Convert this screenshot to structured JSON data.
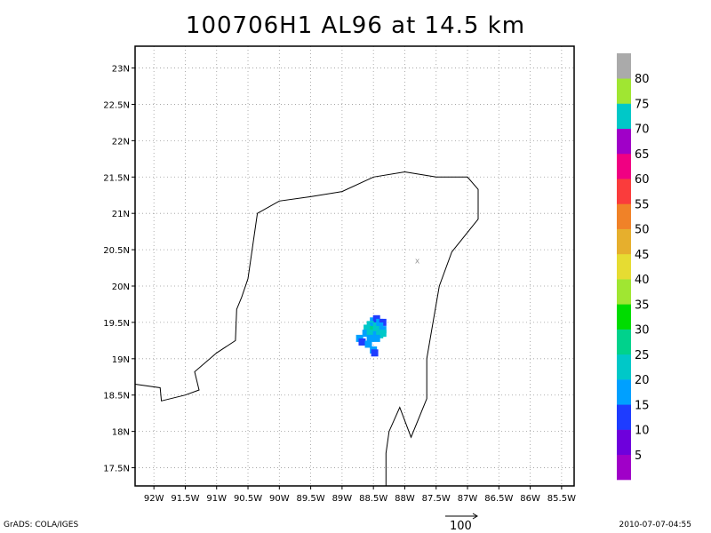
{
  "title": "100706H1 AL96 at 14.5 km",
  "footer": {
    "credit": "GrADS: COLA/IGES",
    "timestamp": "2010-07-07-04:55",
    "vector_scale_label": "100"
  },
  "map": {
    "lon_range": [
      -92.3,
      -85.3
    ],
    "lat_range": [
      17.25,
      23.3
    ],
    "lon_ticks": [
      -92,
      -91.5,
      -91,
      -90.5,
      -90,
      -89.5,
      -89,
      -88.5,
      -88,
      -87.5,
      -87,
      -86.5,
      -86,
      -85.5
    ],
    "lon_labels": [
      "92W",
      "91.5W",
      "91W",
      "90.5W",
      "90W",
      "89.5W",
      "89W",
      "88.5W",
      "88W",
      "87.5W",
      "87W",
      "86.5W",
      "86W",
      "85.5W"
    ],
    "lat_ticks": [
      17.5,
      18,
      18.5,
      19,
      19.5,
      20,
      20.5,
      21,
      21.5,
      22,
      22.5,
      23
    ],
    "lat_labels": [
      "17.5N",
      "18N",
      "18.5N",
      "19N",
      "19.5N",
      "20N",
      "20.5N",
      "21N",
      "21.5N",
      "22N",
      "22.5N",
      "23N"
    ],
    "grid": "dotted",
    "coastline": [
      [
        -92.3,
        18.65
      ],
      [
        -91.9,
        18.6
      ],
      [
        -91.88,
        18.42
      ],
      [
        -91.5,
        18.5
      ],
      [
        -91.28,
        18.57
      ],
      [
        -91.35,
        18.82
      ],
      [
        -91.0,
        19.08
      ],
      [
        -90.7,
        19.25
      ],
      [
        -90.68,
        19.68
      ],
      [
        -90.6,
        19.85
      ],
      [
        -90.5,
        20.1
      ],
      [
        -90.35,
        21.0
      ],
      [
        -90.0,
        21.17
      ],
      [
        -89.5,
        21.23
      ],
      [
        -89.0,
        21.3
      ],
      [
        -88.5,
        21.5
      ],
      [
        -88.0,
        21.57
      ],
      [
        -87.5,
        21.5
      ],
      [
        -87.0,
        21.5
      ],
      [
        -86.83,
        21.33
      ],
      [
        -86.83,
        20.92
      ],
      [
        -87.25,
        20.47
      ],
      [
        -87.45,
        20.0
      ],
      [
        -87.55,
        19.5
      ],
      [
        -87.65,
        19.0
      ],
      [
        -87.65,
        18.45
      ],
      [
        -87.9,
        17.92
      ],
      [
        -88.08,
        18.33
      ],
      [
        -88.25,
        18.0
      ],
      [
        -88.3,
        17.7
      ],
      [
        -88.3,
        17.25
      ]
    ],
    "center_marker": {
      "lon": -87.8,
      "lat": 20.35,
      "symbol": "x",
      "color": "#999999"
    }
  },
  "reflectivity": [
    {
      "lon": -88.5,
      "lat": 19.52,
      "dbz": 15
    },
    {
      "lon": -88.45,
      "lat": 19.55,
      "dbz": 10
    },
    {
      "lon": -88.4,
      "lat": 19.5,
      "dbz": 15
    },
    {
      "lon": -88.35,
      "lat": 19.5,
      "dbz": 10
    },
    {
      "lon": -88.55,
      "lat": 19.47,
      "dbz": 20
    },
    {
      "lon": -88.5,
      "lat": 19.45,
      "dbz": 15
    },
    {
      "lon": -88.45,
      "lat": 19.45,
      "dbz": 20
    },
    {
      "lon": -88.4,
      "lat": 19.45,
      "dbz": 15
    },
    {
      "lon": -88.6,
      "lat": 19.42,
      "dbz": 20
    },
    {
      "lon": -88.55,
      "lat": 19.4,
      "dbz": 20
    },
    {
      "lon": -88.5,
      "lat": 19.4,
      "dbz": 25
    },
    {
      "lon": -88.45,
      "lat": 19.4,
      "dbz": 20
    },
    {
      "lon": -88.4,
      "lat": 19.4,
      "dbz": 20
    },
    {
      "lon": -88.35,
      "lat": 19.4,
      "dbz": 15
    },
    {
      "lon": -88.62,
      "lat": 19.35,
      "dbz": 15
    },
    {
      "lon": -88.55,
      "lat": 19.35,
      "dbz": 20
    },
    {
      "lon": -88.5,
      "lat": 19.33,
      "dbz": 20
    },
    {
      "lon": -88.45,
      "lat": 19.33,
      "dbz": 15
    },
    {
      "lon": -88.4,
      "lat": 19.33,
      "dbz": 20
    },
    {
      "lon": -88.35,
      "lat": 19.35,
      "dbz": 20
    },
    {
      "lon": -88.55,
      "lat": 19.28,
      "dbz": 15
    },
    {
      "lon": -88.45,
      "lat": 19.28,
      "dbz": 15
    },
    {
      "lon": -88.72,
      "lat": 19.28,
      "dbz": 15
    },
    {
      "lon": -88.68,
      "lat": 19.23,
      "dbz": 10
    },
    {
      "lon": -88.58,
      "lat": 19.2,
      "dbz": 15
    },
    {
      "lon": -88.5,
      "lat": 19.12,
      "dbz": 15
    },
    {
      "lon": -88.48,
      "lat": 19.08,
      "dbz": 10
    }
  ],
  "colorbar": {
    "colors": [
      "#a000c8",
      "#6e00dc",
      "#1e3cff",
      "#00a0ff",
      "#00c8c8",
      "#00d28c",
      "#00dc00",
      "#a0e632",
      "#e6dc32",
      "#e6af2d",
      "#f08228",
      "#fa3c3c",
      "#f00082",
      "#a000c8",
      "#00c8c8",
      "#a0e632",
      "#aaaaaa"
    ],
    "labels": [
      "5",
      "10",
      "15",
      "20",
      "25",
      "30",
      "35",
      "40",
      "45",
      "50",
      "55",
      "60",
      "65",
      "70",
      "75",
      "80"
    ]
  }
}
